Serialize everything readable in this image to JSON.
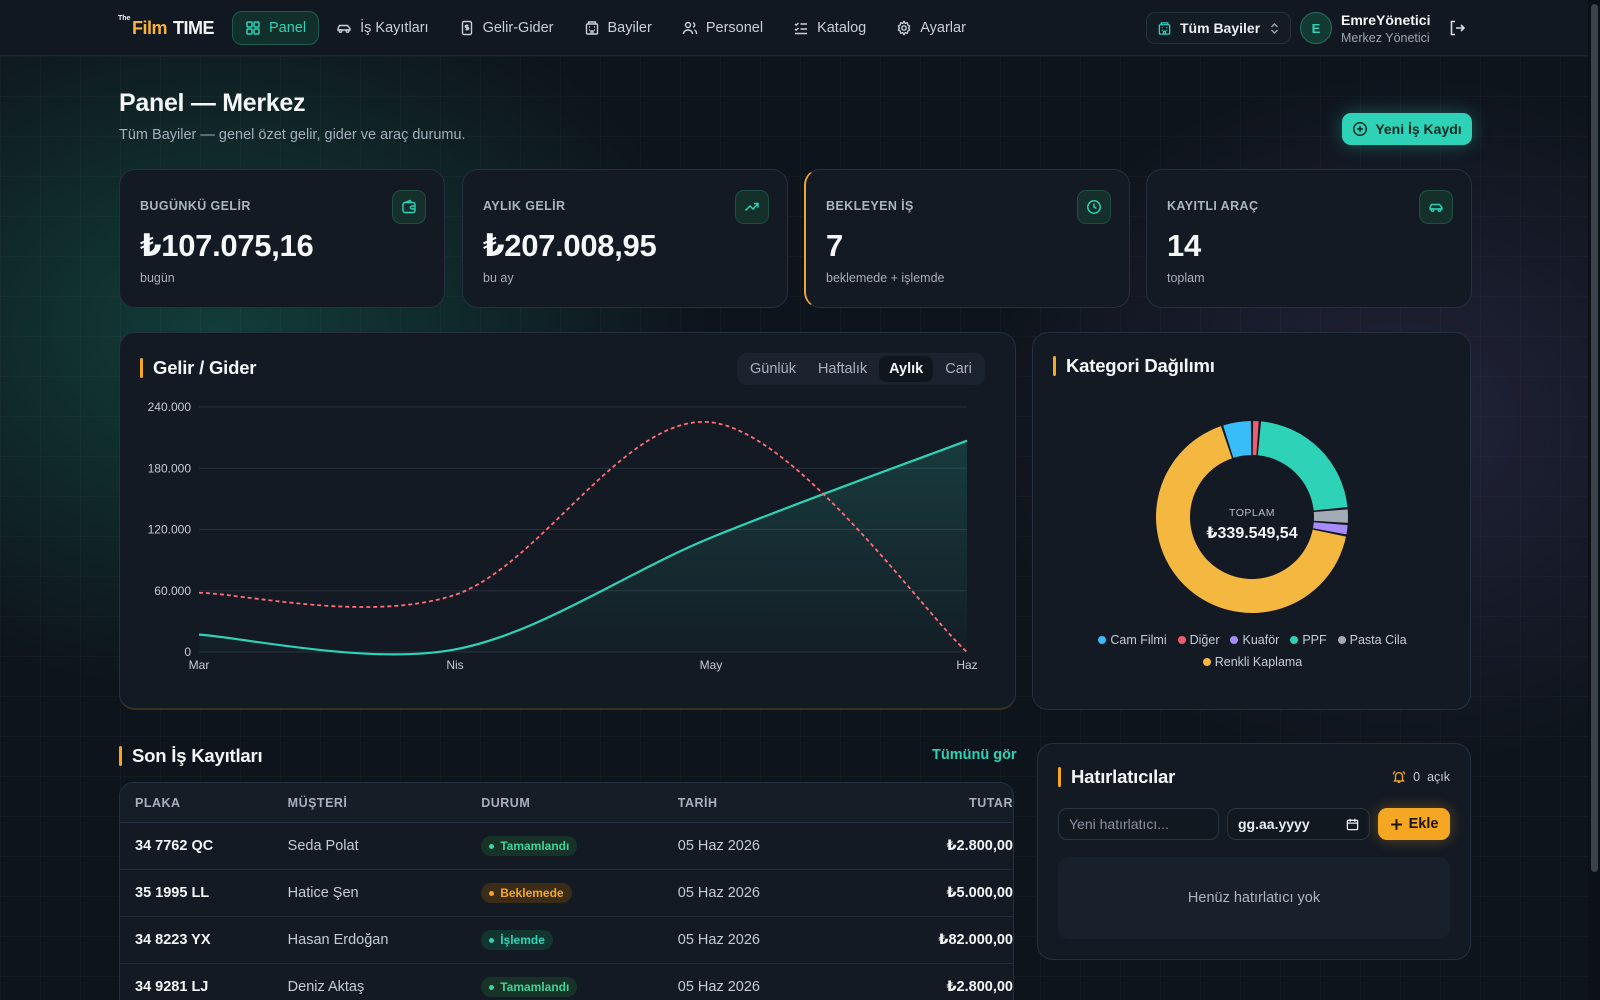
{
  "brand": {
    "the": "The",
    "film": "Film",
    "time": "TIME"
  },
  "nav": {
    "items": [
      {
        "label": "Panel",
        "icon": "grid-icon",
        "active": true
      },
      {
        "label": "İş Kayıtları",
        "icon": "car-icon"
      },
      {
        "label": "Gelir-Gider",
        "icon": "receipt-icon"
      },
      {
        "label": "Bayiler",
        "icon": "building-icon"
      },
      {
        "label": "Personel",
        "icon": "users-icon"
      },
      {
        "label": "Katalog",
        "icon": "list-check-icon"
      },
      {
        "label": "Ayarlar",
        "icon": "gear-icon"
      }
    ],
    "branch_select": "Tüm Bayiler",
    "user": {
      "initial": "E",
      "name": "EmreYönetici",
      "role": "Merkez Yönetici"
    }
  },
  "header": {
    "title": "Panel — Merkez",
    "subtitle": "Tüm Bayiler — genel özet gelir, gider ve araç durumu.",
    "new_job_label": "Yeni İş Kaydı"
  },
  "stats": [
    {
      "label": "BUGÜNKÜ GELİR",
      "value": "₺107.075,16",
      "sub": "bugün",
      "icon": "wallet-icon"
    },
    {
      "label": "AYLIK GELİR",
      "value": "₺207.008,95",
      "sub": "bu ay",
      "icon": "trend-up-icon"
    },
    {
      "label": "BEKLEYEN İŞ",
      "value": "7",
      "sub": "beklemede + işlemde",
      "icon": "clock-icon"
    },
    {
      "label": "KAYITLI ARAÇ",
      "value": "14",
      "sub": "toplam",
      "icon": "car-icon"
    }
  ],
  "income_chart": {
    "title": "Gelir / Gider",
    "ranges": [
      "Günlük",
      "Haftalık",
      "Aylık",
      "Cari"
    ],
    "active_range": "Aylık",
    "colors": {
      "income": "#2ed3b7",
      "expense": "#ff6b7a"
    }
  },
  "donut": {
    "title": "Kategori Dağılımı",
    "center_label": "TOPLAM",
    "center_value": "₺339.549,54"
  },
  "chart_data": [
    {
      "type": "line",
      "x": [
        "Mar",
        "Nis",
        "May",
        "Haz"
      ],
      "series": [
        {
          "values": [
            17000,
            2500,
            112000,
            207000
          ],
          "style": "solid",
          "fill": true
        },
        {
          "values": [
            58000,
            56000,
            225000,
            0
          ],
          "style": "dashed"
        }
      ],
      "yticks": [
        "0",
        "60.000",
        "120.000",
        "180.000",
        "240.000"
      ],
      "ylim": [
        0,
        240000
      ],
      "grid": true
    },
    {
      "type": "pie",
      "labels": [
        "Cam Filmi",
        "Diğer",
        "Kuaför",
        "PPF",
        "Pasta Cila",
        "Renkli Kaplama"
      ],
      "values": [
        5.0,
        1.3,
        1.9,
        22.0,
        2.6,
        66.2
      ],
      "colors": [
        "#38bdf8",
        "#f05d6c",
        "#a78bfa",
        "#2ed3b7",
        "#a3abb6",
        "#f4b740"
      ],
      "slice_order": [
        "Diğer",
        "PPF",
        "Pasta Cila",
        "Kuaför",
        "Renkli Kaplama",
        "Cam Filmi"
      ]
    }
  ],
  "jobs": {
    "title": "Son İş Kayıtları",
    "see_all": "Tümünü gör",
    "columns": [
      "PLAKA",
      "MÜŞTERİ",
      "DURUM",
      "TARİH",
      "TUTAR"
    ],
    "rows": [
      {
        "plate": "34 7762 QC",
        "customer": "Seda Polat",
        "status": "Tamamlandı",
        "status_kind": "done",
        "date": "05 Haz 2026",
        "amount": "₺2.800,00"
      },
      {
        "plate": "35 1995 LL",
        "customer": "Hatice Şen",
        "status": "Beklemede",
        "status_kind": "wait",
        "date": "05 Haz 2026",
        "amount": "₺5.000,00"
      },
      {
        "plate": "34 8223 YX",
        "customer": "Hasan Erdoğan",
        "status": "İşlemde",
        "status_kind": "work",
        "date": "05 Haz 2026",
        "amount": "₺82.000,00"
      },
      {
        "plate": "34 9281 LJ",
        "customer": "Deniz Aktaş",
        "status": "Tamamlandı",
        "status_kind": "done",
        "date": "05 Haz 2026",
        "amount": "₺2.800,00"
      }
    ]
  },
  "reminders": {
    "title": "Hatırlatıcılar",
    "count": "0",
    "count_suffix": "açık",
    "input_placeholder": "Yeni hatırlatıcı...",
    "date_placeholder": "gg.aa.yyyy",
    "add_label": "Ekle",
    "empty_text": "Henüz hatırlatıcı yok"
  }
}
